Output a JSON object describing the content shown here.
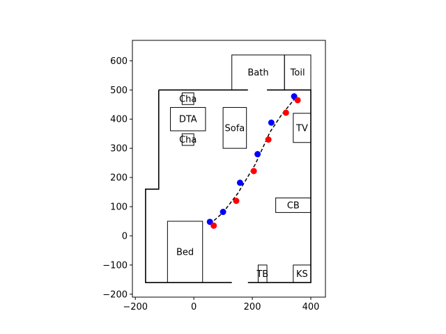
{
  "chart_data": {
    "type": "scatter",
    "title": "",
    "xlabel": "",
    "ylabel": "",
    "xlim": [
      -210,
      450
    ],
    "ylim": [
      -210,
      670
    ],
    "xticks": [
      -200,
      0,
      200,
      400
    ],
    "yticks": [
      -200,
      -100,
      0,
      100,
      200,
      300,
      400,
      500,
      600
    ],
    "grid": false,
    "room_outline": [
      [
        -120,
        500
      ],
      [
        400,
        500
      ],
      [
        400,
        -160
      ],
      [
        -165,
        -160
      ],
      [
        -165,
        160
      ],
      [
        -120,
        160
      ],
      [
        -120,
        500
      ]
    ],
    "door_gaps": [
      {
        "x": [
          185,
          250
        ],
        "y": 500
      },
      {
        "x": [
          130,
          185
        ],
        "y": -160
      }
    ],
    "furniture": [
      {
        "label": "Bath",
        "x": [
          130,
          310
        ],
        "y": [
          500,
          620
        ]
      },
      {
        "label": "Toil",
        "x": [
          310,
          400
        ],
        "y": [
          500,
          620
        ]
      },
      {
        "label": "Cha",
        "x": [
          -40,
          0
        ],
        "y": [
          450,
          490
        ]
      },
      {
        "label": "DTA",
        "x": [
          -80,
          40
        ],
        "y": [
          360,
          440
        ]
      },
      {
        "label": "Cha",
        "x": [
          -40,
          0
        ],
        "y": [
          310,
          350
        ]
      },
      {
        "label": "Sofa",
        "x": [
          100,
          180
        ],
        "y": [
          300,
          440
        ]
      },
      {
        "label": "TV",
        "x": [
          340,
          400
        ],
        "y": [
          320,
          420
        ]
      },
      {
        "label": "CB",
        "x": [
          280,
          400
        ],
        "y": [
          80,
          130
        ]
      },
      {
        "label": "Bed",
        "x": [
          -90,
          30
        ],
        "y": [
          -160,
          50
        ]
      },
      {
        "label": "TB",
        "x": [
          220,
          250
        ],
        "y": [
          -160,
          -100
        ]
      },
      {
        "label": "KS",
        "x": [
          340,
          400
        ],
        "y": [
          -160,
          -100
        ]
      }
    ],
    "series": [
      {
        "color": "#0000ff",
        "points": [
          [
            55,
            48
          ],
          [
            100,
            82
          ],
          [
            158,
            182
          ],
          [
            218,
            280
          ],
          [
            265,
            388
          ],
          [
            343,
            478
          ]
        ]
      },
      {
        "color": "#ff0000",
        "points": [
          [
            68,
            35
          ],
          [
            145,
            120
          ],
          [
            205,
            222
          ],
          [
            255,
            330
          ],
          [
            315,
            422
          ],
          [
            355,
            465
          ]
        ]
      }
    ],
    "path_line": {
      "style": "dashed",
      "color": "#000000",
      "points": [
        [
          55,
          40
        ],
        [
          100,
          80
        ],
        [
          150,
          145
        ],
        [
          210,
          245
        ],
        [
          260,
          355
        ],
        [
          300,
          415
        ],
        [
          345,
          470
        ]
      ]
    }
  }
}
